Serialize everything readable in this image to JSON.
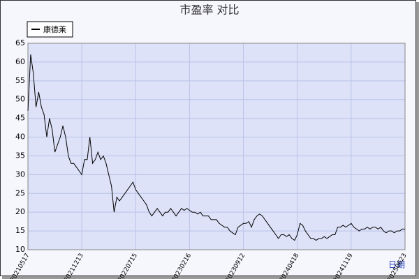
{
  "chart_data": {
    "type": "line",
    "title": "市盈率  对比",
    "x_label": "日期",
    "legend": "upper left",
    "grid": true,
    "ylim": [
      10,
      65
    ],
    "yticks": [
      10,
      15,
      20,
      25,
      30,
      35,
      40,
      45,
      50,
      55,
      60,
      65
    ],
    "categories": [
      "20210517",
      null,
      null,
      null,
      null,
      null,
      null,
      null,
      null,
      null,
      null,
      null,
      null,
      null,
      null,
      null,
      null,
      null,
      null,
      null,
      "20211213",
      null,
      null,
      null,
      null,
      null,
      null,
      null,
      null,
      null,
      null,
      null,
      null,
      null,
      null,
      null,
      null,
      null,
      null,
      null,
      "20220715",
      null,
      null,
      null,
      null,
      null,
      null,
      null,
      null,
      null,
      null,
      null,
      null,
      null,
      null,
      null,
      null,
      null,
      null,
      null,
      "20230216",
      null,
      null,
      null,
      null,
      null,
      null,
      null,
      null,
      null,
      null,
      null,
      null,
      null,
      null,
      null,
      null,
      null,
      null,
      null,
      "20230912",
      null,
      null,
      null,
      null,
      null,
      null,
      null,
      null,
      null,
      null,
      null,
      null,
      null,
      null,
      null,
      null,
      null,
      null,
      null,
      "20240418",
      null,
      null,
      null,
      null,
      null,
      null,
      null,
      null,
      null,
      null,
      null,
      null,
      null,
      null,
      null,
      null,
      null,
      null,
      null,
      "20241119",
      null,
      null,
      null,
      null,
      null,
      null,
      null,
      null,
      null,
      null,
      null,
      null,
      null,
      null,
      null,
      null,
      null,
      null,
      null,
      "20250623"
    ],
    "series": [
      {
        "name": "康德莱",
        "color": "#000000",
        "values": [
          47,
          62,
          57,
          48,
          52,
          48,
          46,
          40,
          45,
          42,
          36,
          38,
          40,
          43,
          40,
          35,
          33,
          33,
          32,
          31,
          30,
          34,
          34,
          40,
          33,
          34,
          36,
          34,
          35,
          33,
          30,
          27,
          20,
          24,
          23,
          24,
          25,
          26,
          27,
          28,
          26,
          25,
          24,
          23,
          22,
          20,
          19,
          20,
          21,
          20,
          19,
          20,
          20,
          21,
          20,
          19,
          20,
          21,
          20.5,
          21,
          20.5,
          20,
          20,
          19.5,
          20,
          19,
          19,
          19,
          18,
          18,
          18,
          17,
          16.5,
          16,
          16,
          15,
          14.5,
          14,
          16,
          16.5,
          17,
          17,
          17.5,
          16,
          18,
          19,
          19.5,
          19,
          18,
          17,
          16,
          15,
          14,
          13,
          14,
          14,
          13.5,
          14,
          13,
          12.5,
          14,
          17,
          16.5,
          15,
          14,
          13,
          13,
          12.5,
          13,
          13,
          13.5,
          13,
          13.5,
          14,
          14,
          16,
          16,
          16.5,
          16,
          16.5,
          17,
          16,
          15.5,
          15,
          15.5,
          15.5,
          16,
          15.5,
          16,
          16,
          15.5,
          16,
          15,
          14.5,
          15,
          15,
          14.5,
          15,
          15,
          15.5,
          15.5
        ]
      }
    ]
  }
}
